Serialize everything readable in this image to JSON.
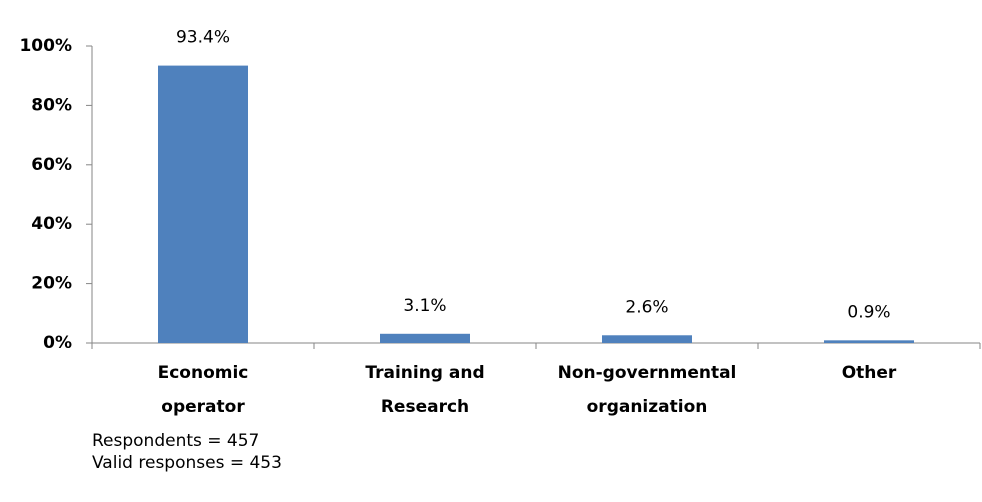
{
  "chart_data": {
    "type": "bar",
    "categories": [
      "Economic operator",
      "Training and Research",
      "Non-governmental organization",
      "Other"
    ],
    "values": [
      93.4,
      3.1,
      2.6,
      0.9
    ],
    "value_labels": [
      "93.4%",
      "3.1%",
      "2.6%",
      "0.9%"
    ],
    "color": "#4f81bd",
    "ylim": [
      0,
      100
    ],
    "yticks": [
      {
        "value": 0,
        "label": "0%"
      },
      {
        "value": 20,
        "label": "20%"
      },
      {
        "value": 40,
        "label": "40%"
      },
      {
        "value": 60,
        "label": "60%"
      },
      {
        "value": 80,
        "label": "80%"
      },
      {
        "value": 100,
        "label": "100%"
      }
    ],
    "grid": false,
    "notes": [
      "Respondents = 457",
      "Valid responses = 453"
    ]
  }
}
